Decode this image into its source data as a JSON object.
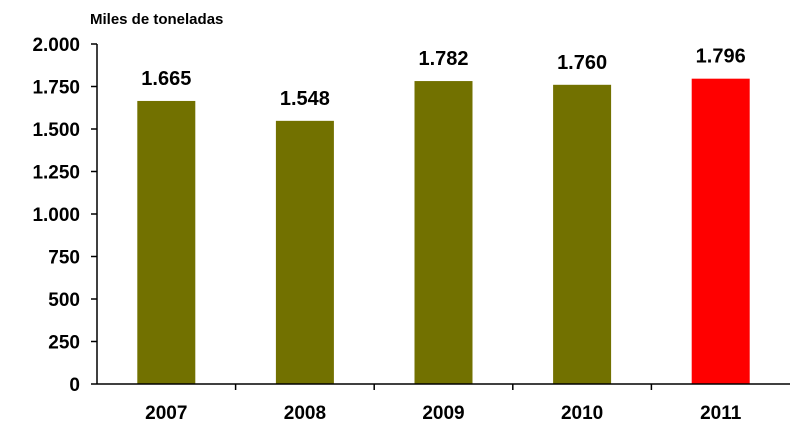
{
  "chart_data": {
    "type": "bar",
    "title": "",
    "unit_label": "Miles de toneladas",
    "xlabel": "",
    "ylabel": "",
    "categories": [
      "2007",
      "2008",
      "2009",
      "2010",
      "2011"
    ],
    "values": [
      1665,
      1548,
      1782,
      1760,
      1796
    ],
    "data_labels": [
      "1.665",
      "1.548",
      "1.782",
      "1.760",
      "1.796"
    ],
    "y_ticks": [
      0,
      250,
      500,
      750,
      1000,
      1250,
      1500,
      1750,
      2000
    ],
    "y_tick_labels": [
      "0",
      "250",
      "500",
      "750",
      "1.000",
      "1.250",
      "1.500",
      "1.750",
      "2.000"
    ],
    "ylim": [
      0,
      2000
    ],
    "grid": false,
    "legend": "none",
    "bar_colors": [
      "#727100",
      "#727100",
      "#727100",
      "#727100",
      "#ff0000"
    ],
    "axis_color": "#000000"
  }
}
